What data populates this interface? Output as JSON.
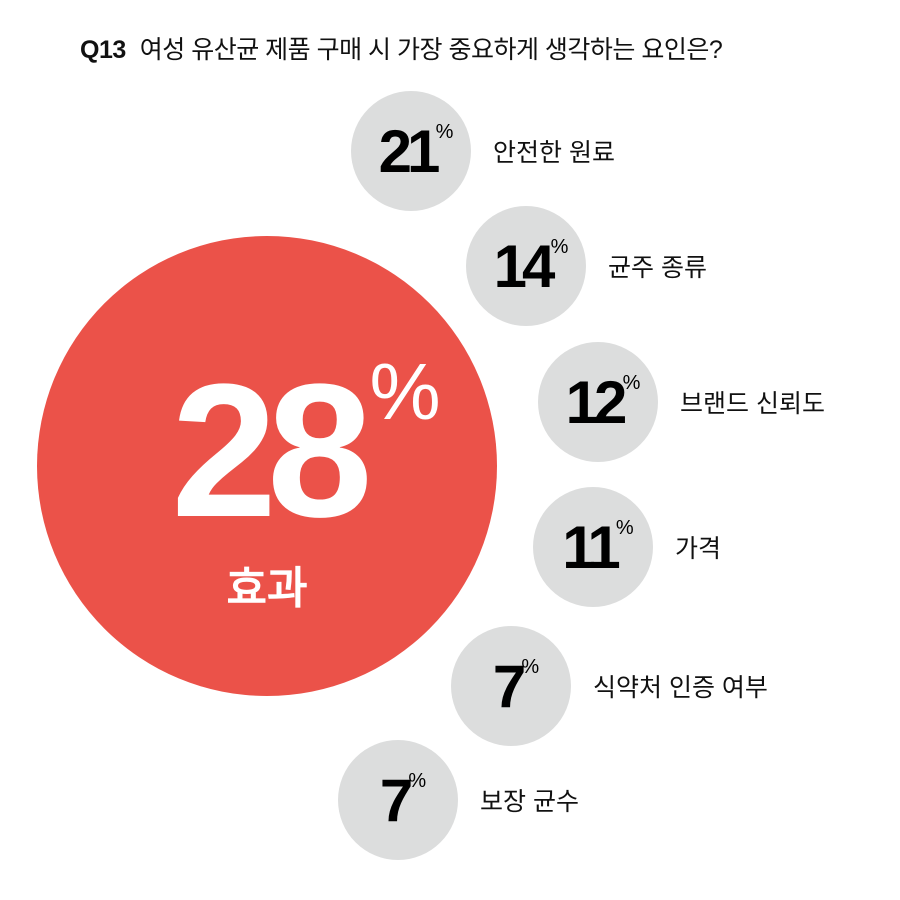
{
  "title": {
    "number": "Q13",
    "text": "여성 유산균 제품 구매 시 가장 중요하게 생각하는 요인은?"
  },
  "colors": {
    "highlight": "#eb5249",
    "bubble": "#dcdddd"
  },
  "chart_data": {
    "type": "bubble",
    "title": "Q13 여성 유산균 제품 구매 시 가장 중요하게 생각하는 요인은?",
    "unit": "%",
    "categories": [
      "효과",
      "안전한 원료",
      "균주 종류",
      "브랜드 신뢰도",
      "가격",
      "식약처 인증 여부",
      "보장 균수"
    ],
    "values": [
      28,
      21,
      14,
      12,
      11,
      7,
      7
    ],
    "labels": [
      "28",
      "21",
      "14",
      "12",
      "11",
      "7",
      "7"
    ]
  }
}
